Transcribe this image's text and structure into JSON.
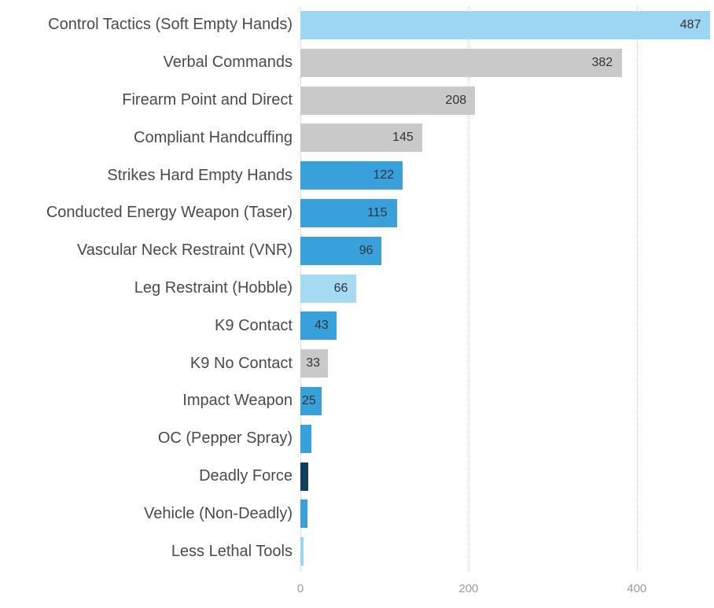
{
  "chart_data": {
    "type": "bar",
    "orientation": "horizontal",
    "title": "",
    "xlabel": "",
    "ylabel": "",
    "xlim": [
      0,
      490
    ],
    "x_ticks": [
      0,
      200,
      400
    ],
    "x_tick_labels": [
      "0",
      "200",
      "400"
    ],
    "grid": "dotted-vertical-gridlines",
    "legend": "none",
    "categories": [
      "Control Tactics (Soft Empty Hands)",
      "Verbal Commands",
      "Firearm Point and Direct",
      "Compliant Handcuffing",
      "Strikes Hard Empty Hands",
      "Conducted Energy Weapon (Taser)",
      "Vascular Neck Restraint (VNR)",
      "Leg Restraint (Hobble)",
      "K9 Contact",
      "K9 No Contact",
      "Impact Weapon",
      "OC (Pepper Spray)",
      "Deadly Force",
      "Vehicle (Non-Deadly)",
      "Less Lethal Tools"
    ],
    "values": [
      487,
      382,
      208,
      145,
      122,
      115,
      96,
      66,
      43,
      33,
      25,
      13,
      9,
      8,
      4
    ],
    "data_labels": [
      "487",
      "382",
      "208",
      "145",
      "122",
      "115",
      "96",
      "66",
      "43",
      "33",
      "25",
      "",
      "",
      "",
      ""
    ],
    "bar_colors": [
      "#9cd6f2",
      "#c9c9c9",
      "#c9c9c9",
      "#c9c9c9",
      "#38a1dc",
      "#38a1dc",
      "#38a1dc",
      "#a5daf2",
      "#38a1dc",
      "#c9c9c9",
      "#38a1dc",
      "#38a1dc",
      "#0f3e5e",
      "#38a1dc",
      "#9cd6f2"
    ]
  },
  "styles": {
    "category_label_color": "#4a4a4a",
    "value_label_color": "#333333",
    "axis_tick_color": "#9a9a9a",
    "grid_color": "#c9c9c9",
    "background": "#ffffff"
  }
}
